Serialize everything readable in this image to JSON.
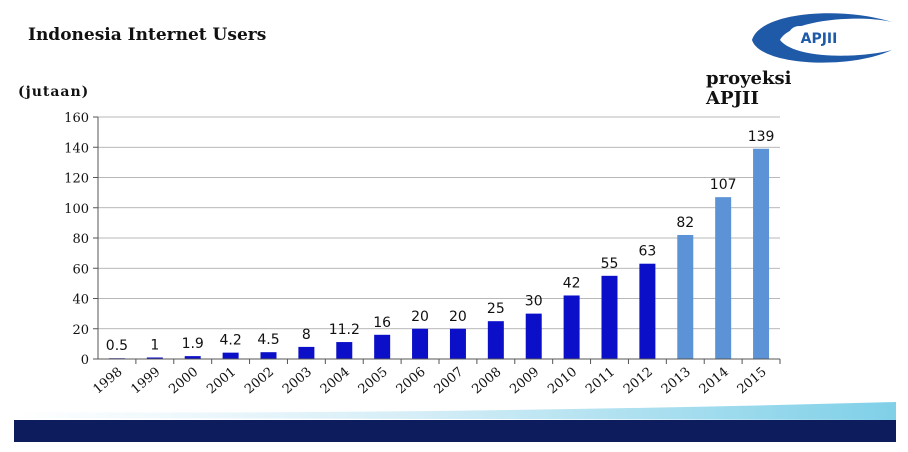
{
  "header": {
    "title": "Indonesia Internet Users",
    "logo_text": "APJII",
    "projection_note_line1": "proyeksi",
    "projection_note_line2": "APJII"
  },
  "colors": {
    "actual_bar": "#0b0fc8",
    "projection_bar": "#5b93d6",
    "axis": "#555555",
    "gridline": "#a0a0a0",
    "banner_dark": "#0d1c5c",
    "banner_light": "#7fd0e8",
    "logo_blue": "#1e5aa8"
  },
  "chart_data": {
    "type": "bar",
    "title": "Indonesia Internet Users",
    "ylabel": "(jutaan)",
    "xlabel": "",
    "ylim": [
      0,
      160
    ],
    "yticks": [
      0,
      20,
      40,
      60,
      80,
      100,
      120,
      140,
      160
    ],
    "grid": true,
    "categories": [
      "1998",
      "1999",
      "2000",
      "2001",
      "2002",
      "2003",
      "2004",
      "2005",
      "2006",
      "2007",
      "2008",
      "2009",
      "2010",
      "2011",
      "2012",
      "2013",
      "2014",
      "2015"
    ],
    "values": [
      0.5,
      1,
      1.9,
      4.2,
      4.5,
      8,
      11.2,
      16,
      20,
      20,
      25,
      30,
      42,
      55,
      63,
      82,
      107,
      139
    ],
    "labels": [
      "0.5",
      "1",
      "1.9",
      "4.2",
      "4.5",
      "8",
      "11.2",
      "16",
      "20",
      "20",
      "25",
      "30",
      "42",
      "55",
      "63",
      "82",
      "107",
      "139"
    ],
    "projection_categories": [
      "2013",
      "2014",
      "2015"
    ]
  }
}
